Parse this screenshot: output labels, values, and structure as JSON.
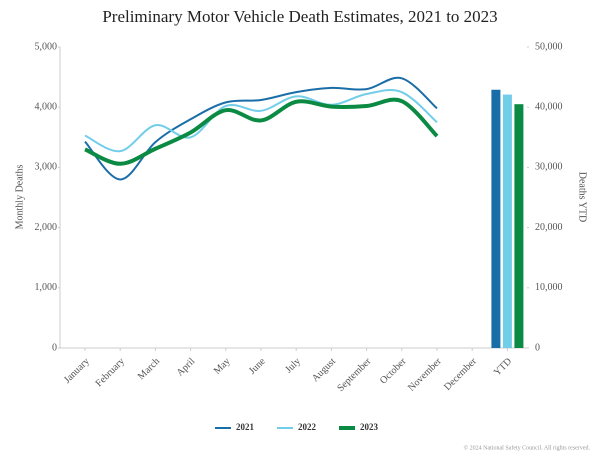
{
  "chart_data": {
    "type": "line",
    "title": "Preliminary Motor Vehicle Death Estimates, 2021 to 2023",
    "ylabel": "Monthly Deaths",
    "y2label": "Deaths YTD",
    "categories": [
      "January",
      "February",
      "March",
      "April",
      "May",
      "June",
      "July",
      "August",
      "September",
      "October",
      "November",
      "December",
      "YTD"
    ],
    "series": [
      {
        "name": "2021",
        "color": "#1a6ea8",
        "values": [
          3430,
          2800,
          3420,
          3800,
          4080,
          4120,
          4250,
          4320,
          4300,
          4480,
          3980,
          null,
          null
        ],
        "ytd": 42900,
        "ytd_axis": "y2"
      },
      {
        "name": "2022",
        "color": "#72cde9",
        "values": [
          3530,
          3270,
          3700,
          3500,
          4020,
          3940,
          4180,
          4040,
          4220,
          4250,
          3750,
          null,
          null
        ],
        "ytd": 42100,
        "ytd_axis": "y2"
      },
      {
        "name": "2023",
        "color": "#0b8a43",
        "values": [
          3300,
          3060,
          3310,
          3580,
          3950,
          3780,
          4090,
          4010,
          4020,
          4100,
          3520,
          null,
          null
        ],
        "ytd": 40500,
        "ytd_axis": "y2"
      }
    ],
    "ylim": [
      0,
      5000
    ],
    "yticks": [
      0,
      {
        "value": 1000,
        "label": "1,000"
      },
      {
        "value": 2000,
        "label": "2,000"
      },
      {
        "value": 3000,
        "label": "3,000"
      },
      {
        "value": 4000,
        "label": "4,000"
      },
      {
        "value": 5000,
        "label": "5,000"
      }
    ],
    "y2lim": [
      0,
      50000
    ],
    "y2ticks": [
      0,
      {
        "value": 10000,
        "label": "10,000"
      },
      {
        "value": 20000,
        "label": "20,000"
      },
      {
        "value": 30000,
        "label": "30,000"
      },
      {
        "value": 40000,
        "label": "40,000"
      },
      {
        "value": 50000,
        "label": "50,000"
      }
    ],
    "grid": false,
    "smooth": true,
    "legend": "bottom",
    "footer": "© 2024 National Safety Council. All rights reserved."
  }
}
